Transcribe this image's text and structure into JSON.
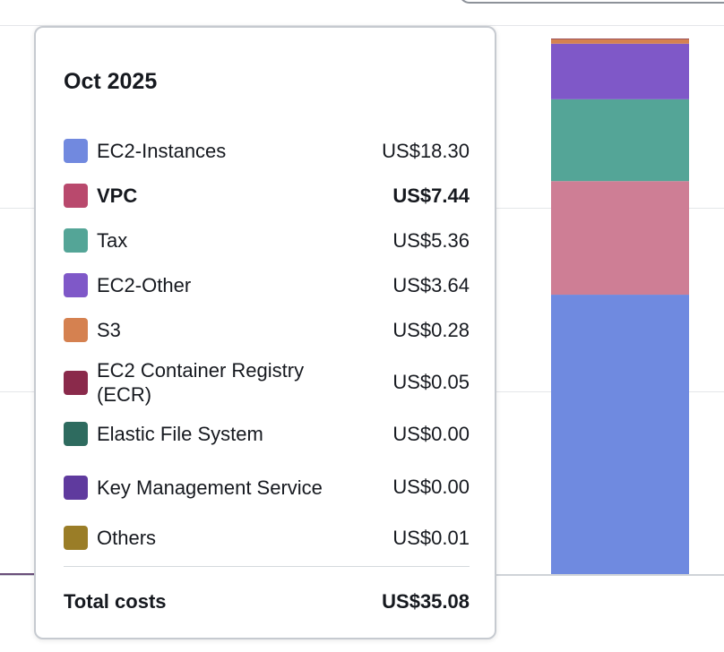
{
  "tooltip": {
    "title": "Oct 2025",
    "items": [
      {
        "label": "EC2-Instances",
        "value": "US$18.30",
        "color": "#7189df",
        "bold": false,
        "icon": "ec2-instances-swatch-icon"
      },
      {
        "label": "VPC",
        "value": "US$7.44",
        "color": "#b9496d",
        "bold": true,
        "icon": "vpc-swatch-icon"
      },
      {
        "label": "Tax",
        "value": "US$5.36",
        "color": "#54a597",
        "bold": false,
        "icon": "tax-swatch-icon"
      },
      {
        "label": "EC2-Other",
        "value": "US$3.64",
        "color": "#7f58c8",
        "bold": false,
        "icon": "ec2-other-swatch-icon"
      },
      {
        "label": "S3",
        "value": "US$0.28",
        "color": "#d58150",
        "bold": false,
        "icon": "s3-swatch-icon"
      },
      {
        "label": "EC2 Container Registry (ECR)",
        "value": "US$0.05",
        "color": "#8a2a4b",
        "bold": false,
        "icon": "ecr-swatch-icon"
      },
      {
        "label": "Elastic File System",
        "value": "US$0.00",
        "color": "#2e6b5f",
        "bold": false,
        "icon": "efs-swatch-icon"
      },
      {
        "label": "Key Management Service",
        "value": "US$0.00",
        "color": "#5f3a9e",
        "bold": false,
        "icon": "kms-swatch-icon"
      },
      {
        "label": "Others",
        "value": "US$0.01",
        "color": "#9a7d27",
        "bold": false,
        "icon": "others-swatch-icon"
      }
    ],
    "total_label": "Total costs",
    "total_value": "US$35.08"
  },
  "chart_data": {
    "type": "bar",
    "stacked": true,
    "categories": [
      "Oct 2025"
    ],
    "series": [
      {
        "name": "EC2-Instances",
        "values": [
          18.3
        ],
        "color": "#6f8ae0"
      },
      {
        "name": "VPC",
        "values": [
          7.44
        ],
        "color": "#ce7e95"
      },
      {
        "name": "Tax",
        "values": [
          5.36
        ],
        "color": "#54a597"
      },
      {
        "name": "EC2-Other",
        "values": [
          3.64
        ],
        "color": "#7f58c8"
      },
      {
        "name": "S3",
        "values": [
          0.28
        ],
        "color": "#d58150"
      },
      {
        "name": "EC2 Container Registry (ECR)",
        "values": [
          0.05
        ],
        "color": "#8a2a4b"
      },
      {
        "name": "Elastic File System",
        "values": [
          0.0
        ],
        "color": "#2e6b5f"
      },
      {
        "name": "Key Management Service",
        "values": [
          0.0
        ],
        "color": "#5f3a9e"
      },
      {
        "name": "Others",
        "values": [
          0.01
        ],
        "color": "#9a7d27"
      }
    ],
    "total": 35.08,
    "grid": true
  }
}
